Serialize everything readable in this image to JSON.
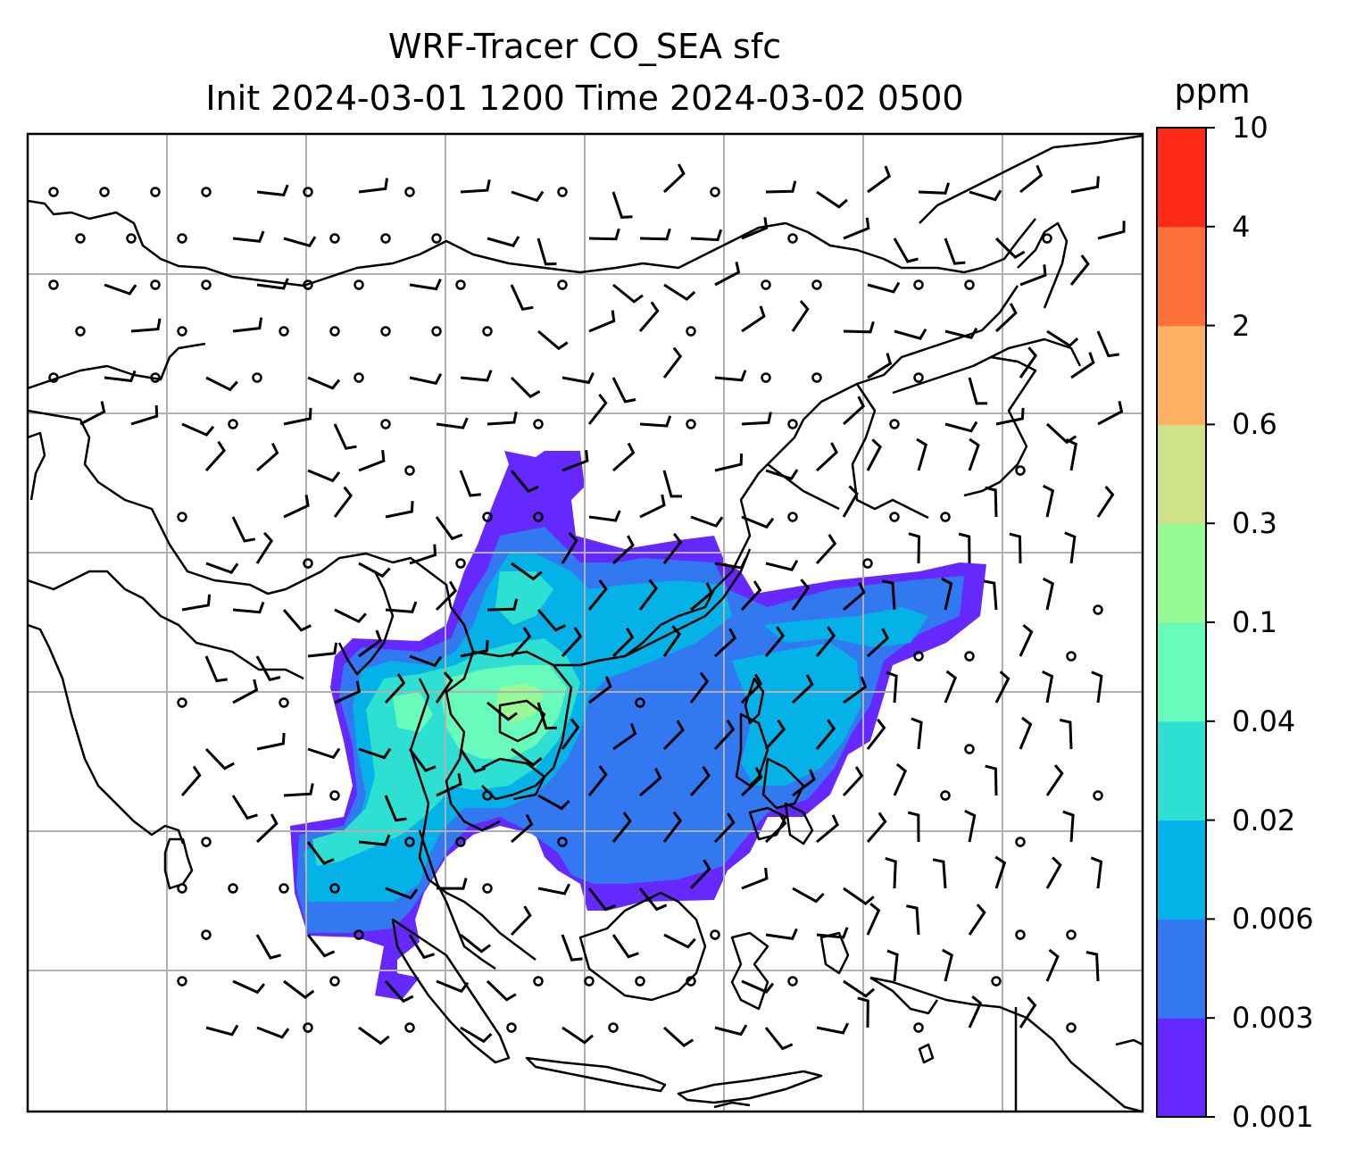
{
  "title": {
    "line1": "WRF-Tracer CO_SEA sfc",
    "line2": "Init 2024-03-01 1200 Time 2024-03-02 0500"
  },
  "colorbar": {
    "unit": "ppm",
    "levels": [
      "0.001",
      "0.003",
      "0.006",
      "0.02",
      "0.04",
      "0.1",
      "0.3",
      "0.6",
      "2",
      "4",
      "10"
    ],
    "colors": [
      "#6528ff",
      "#3278f0",
      "#05b2e8",
      "#2ee0d2",
      "#68fbbc",
      "#97fa95",
      "#cfe287",
      "#fdb060",
      "#fe7039",
      "#fe2a18"
    ]
  },
  "map": {
    "field": "CO_SEA surface tracer",
    "coastline_color": "#000000",
    "grid_color": "#b0b0b0",
    "ocean_color": "#ffffff",
    "overlay": "wind barbs"
  },
  "chart_data": {
    "type": "heatmap",
    "title": "WRF-Tracer CO_SEA sfc",
    "subtitle": "Init 2024-03-01 1200 Time 2024-03-02 0500",
    "colorbar_label": "ppm",
    "colorbar_ticks": [
      0.001,
      0.003,
      0.006,
      0.02,
      0.04,
      0.1,
      0.3,
      0.6,
      2,
      4,
      10
    ],
    "max_level_shown": "0.1-0.3",
    "grid": true,
    "legend": "right"
  }
}
